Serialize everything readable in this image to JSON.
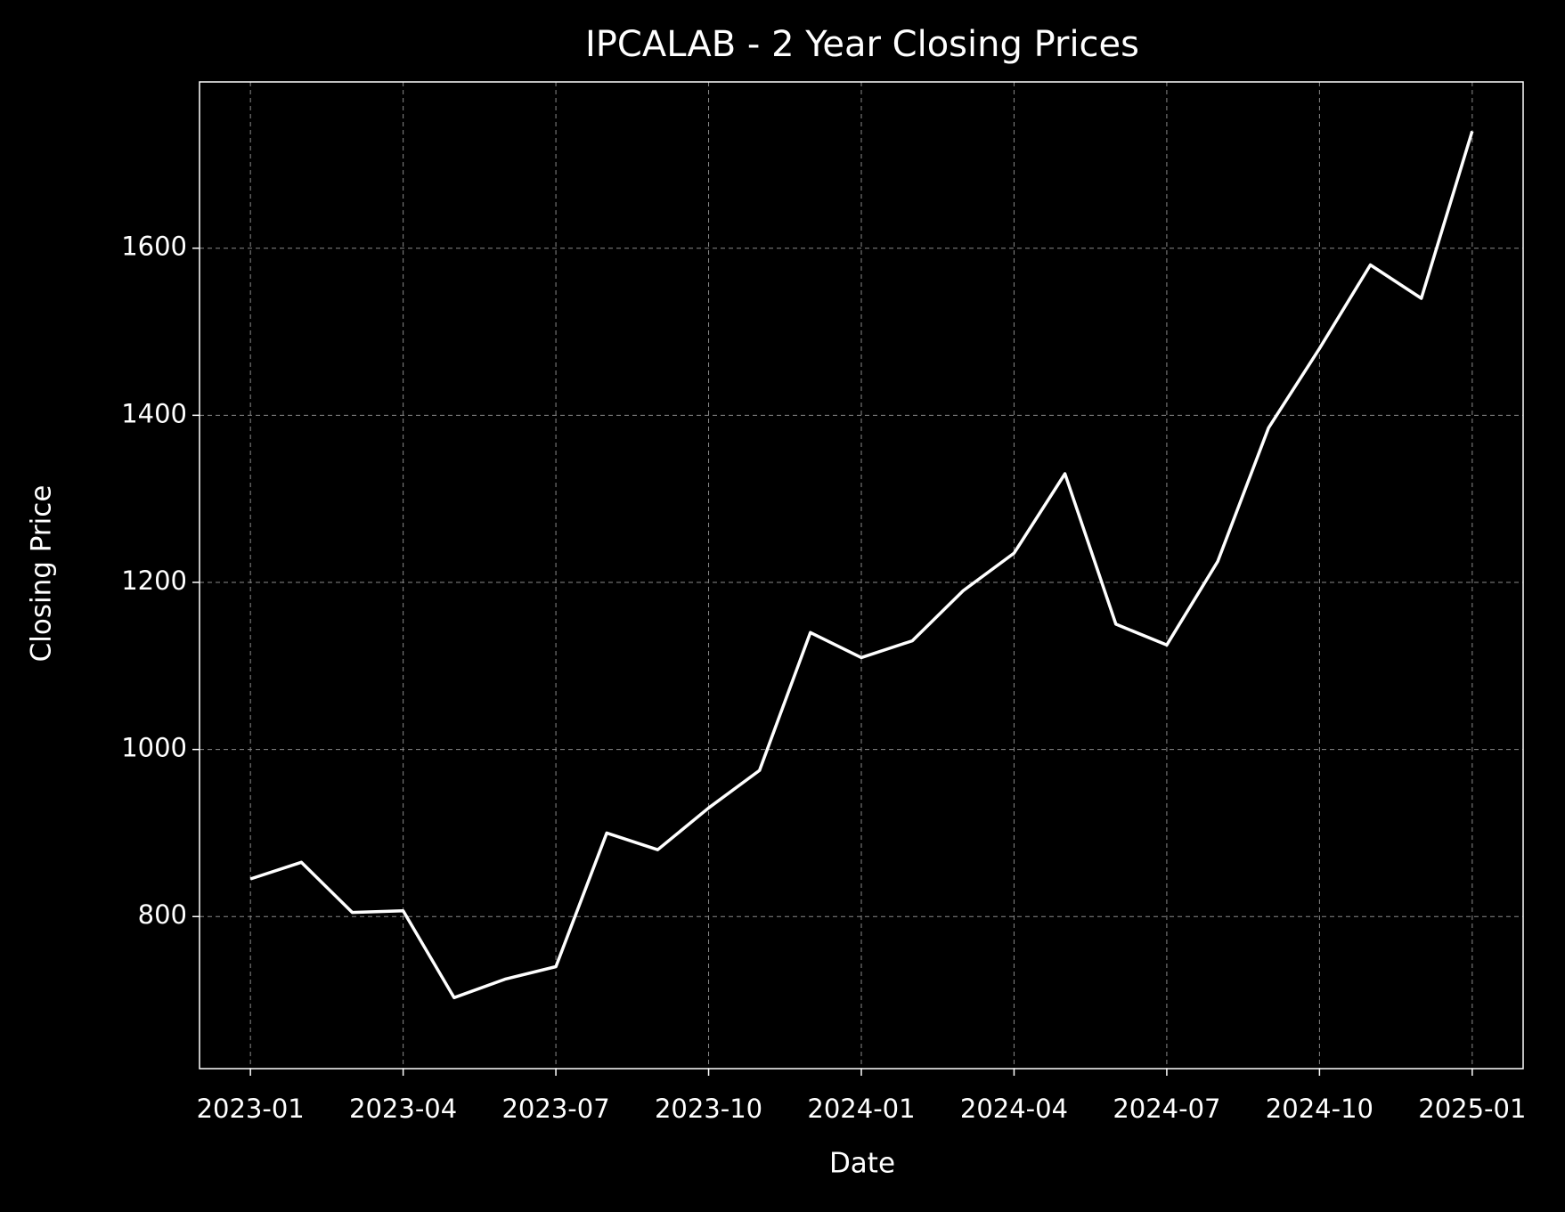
{
  "chart_data": {
    "type": "line",
    "title": "IPCALAB - 2 Year Closing Prices",
    "x_label": "Date",
    "y_label": "Closing Price",
    "x": [
      "2023-01",
      "2023-02",
      "2023-03",
      "2023-04",
      "2023-05",
      "2023-06",
      "2023-07",
      "2023-08",
      "2023-09",
      "2023-10",
      "2023-11",
      "2023-12",
      "2024-01",
      "2024-02",
      "2024-03",
      "2024-04",
      "2024-05",
      "2024-06",
      "2024-07",
      "2024-08",
      "2024-09",
      "2024-10",
      "2024-11",
      "2024-12",
      "2025-01"
    ],
    "values": [
      845,
      865,
      805,
      807,
      703,
      725,
      740,
      900,
      880,
      930,
      975,
      1140,
      1110,
      1130,
      1190,
      1235,
      1330,
      1150,
      1125,
      1225,
      1385,
      1480,
      1580,
      1540,
      1740
    ],
    "color": "#ffffff",
    "xlim": [
      "2022-12",
      "2025-02"
    ],
    "xticks": [
      "2023-01",
      "2023-04",
      "2023-07",
      "2023-10",
      "2024-01",
      "2024-04",
      "2024-07",
      "2024-10",
      "2025-01"
    ],
    "ylim": [
      618,
      1799
    ],
    "yticks": [
      800,
      1000,
      1200,
      1400,
      1600
    ],
    "grid": true
  }
}
